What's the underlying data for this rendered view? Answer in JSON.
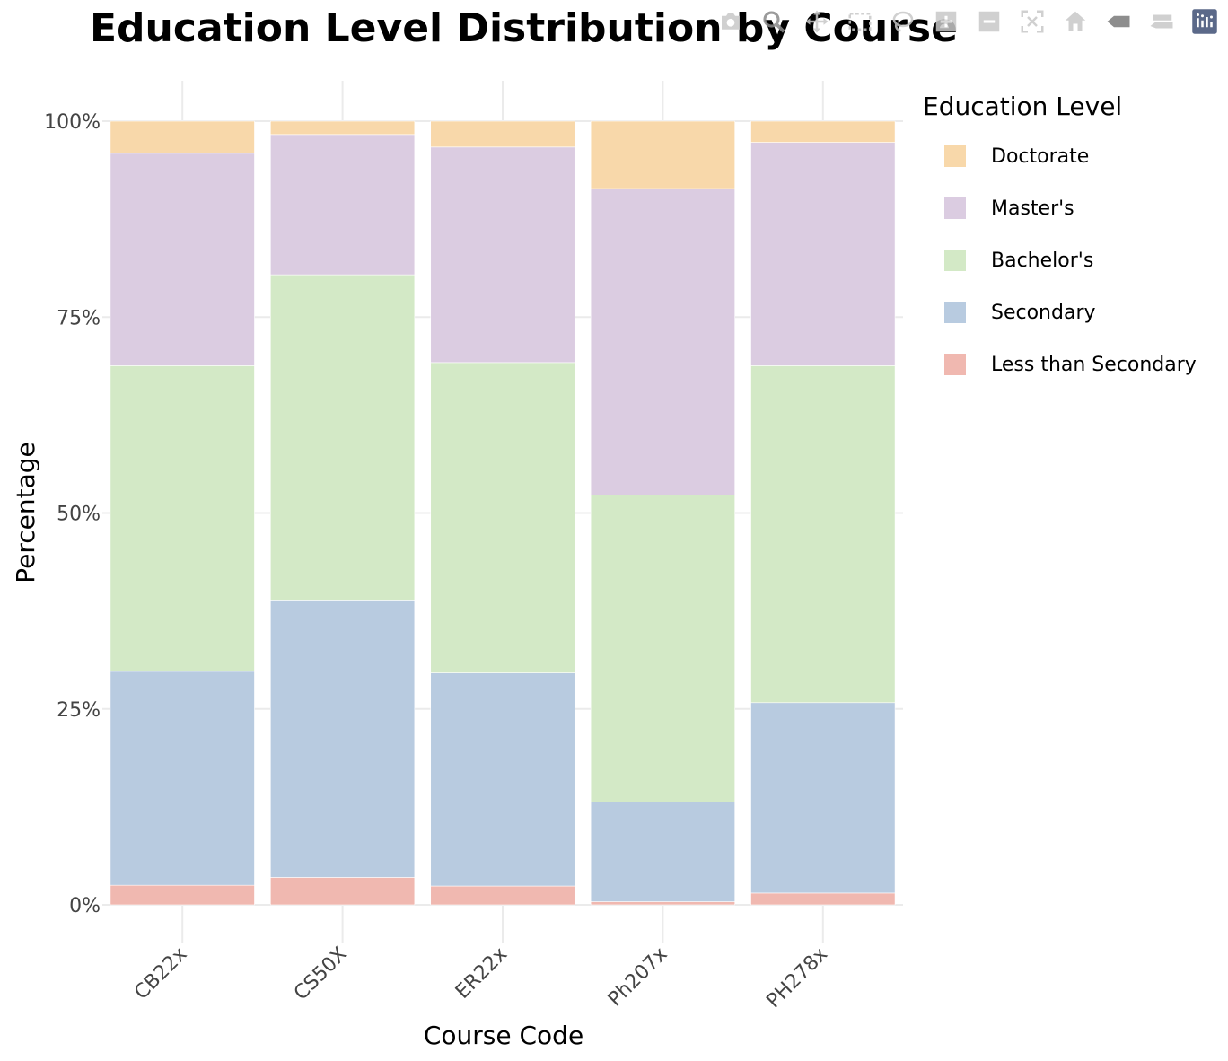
{
  "chart_data": {
    "type": "bar",
    "stacked": true,
    "title": "Education Level Distribution by Course",
    "xlabel": "Course Code",
    "ylabel": "Percentage",
    "categories": [
      "CB22x",
      "CS50X",
      "ER22x",
      "Ph207x",
      "PH278x"
    ],
    "yticks": [
      "0%",
      "25%",
      "50%",
      "75%",
      "100%"
    ],
    "ytick_values": [
      0,
      25,
      50,
      75,
      100
    ],
    "ylim": [
      0,
      100
    ],
    "grid": true,
    "legend_title": "Education Level",
    "legend_position": "right",
    "series": [
      {
        "name": "Less than Secondary",
        "color": "#f0b8b0",
        "values": [
          2.5,
          3.5,
          2.4,
          0.4,
          1.5
        ]
      },
      {
        "name": "Secondary",
        "color": "#b8cbe0",
        "values": [
          27.3,
          35.4,
          27.2,
          12.7,
          24.3
        ]
      },
      {
        "name": "Bachelor's",
        "color": "#d3e9c6",
        "values": [
          39.0,
          41.5,
          39.6,
          39.2,
          43.0
        ]
      },
      {
        "name": "Master's",
        "color": "#dbcce1",
        "values": [
          27.1,
          17.9,
          27.5,
          39.1,
          28.5
        ]
      },
      {
        "name": "Doctorate",
        "color": "#f8d8aa",
        "values": [
          4.1,
          1.7,
          3.3,
          8.6,
          2.7
        ]
      }
    ]
  },
  "legend_order": [
    "Doctorate",
    "Master's",
    "Bachelor's",
    "Secondary",
    "Less than Secondary"
  ],
  "modebar": {
    "icons": [
      "camera-icon",
      "zoom-icon",
      "pan-icon",
      "box-select-icon",
      "lasso-icon",
      "zoom-in-icon",
      "zoom-out-icon",
      "autoscale-icon",
      "home-icon",
      "spike-lines-icon",
      "compare-hover-icon",
      "plotly-logo-icon"
    ]
  }
}
